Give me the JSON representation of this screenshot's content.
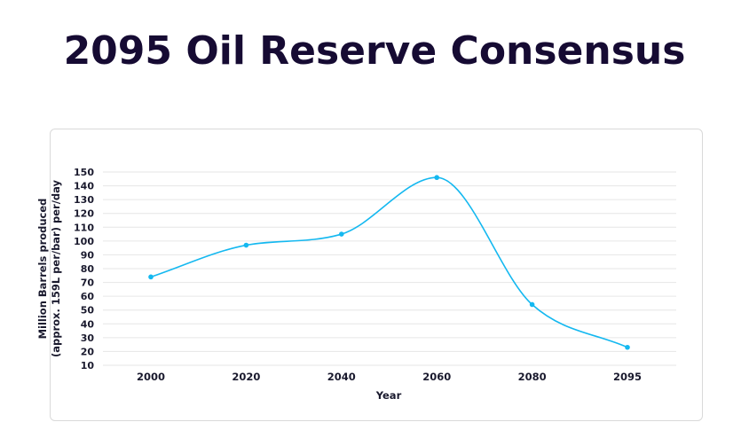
{
  "page": {
    "title": "2095 Oil Reserve Consensus"
  },
  "colors": {
    "title": "#160b33",
    "series": "#14b8f0",
    "grid": "#e6e6e6",
    "text": "#1a1a2e"
  },
  "chart_data": {
    "type": "line",
    "title": "2095 Oil Reserve Consensus",
    "xlabel": "Year",
    "ylabel_lines": [
      "Million Barrels produced",
      "(approx. 159L per/bar) per/day"
    ],
    "categories": [
      "2000",
      "2020",
      "2040",
      "2060",
      "2080",
      "2095"
    ],
    "series": [
      {
        "values": [
          74,
          97,
          105,
          146,
          54,
          23
        ]
      }
    ],
    "ylim": [
      10,
      150
    ],
    "yticks": [
      10,
      20,
      30,
      40,
      50,
      60,
      70,
      80,
      90,
      100,
      110,
      120,
      130,
      140,
      150
    ],
    "grid": true,
    "smooth": true,
    "legend": "none"
  }
}
